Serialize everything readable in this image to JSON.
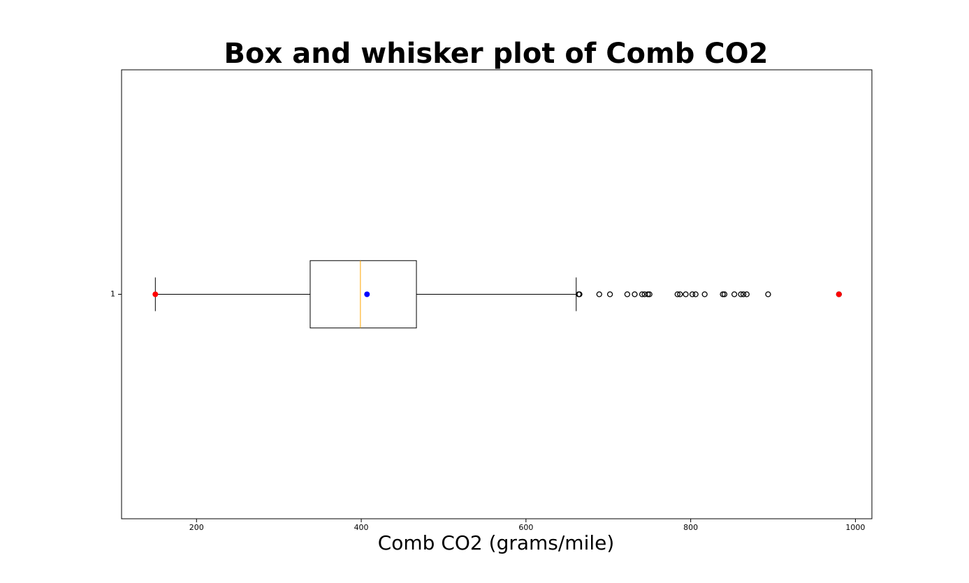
{
  "chart_data": {
    "type": "box",
    "title": "Box and whisker plot of Comb CO2",
    "xlabel": "Comb CO2 (grams/mile)",
    "xlim": [
      109,
      1020
    ],
    "xticks": [
      200,
      400,
      600,
      800,
      1000
    ],
    "ylim": [
      0.5,
      1.5
    ],
    "yticks": [
      1
    ],
    "box": {
      "whislo": 150,
      "q1": 338,
      "median": 399,
      "q3": 467,
      "whishi": 661,
      "mean": 407,
      "fliers": [
        664,
        665,
        689,
        702,
        723,
        732,
        741,
        744,
        748,
        750,
        784,
        787,
        794,
        802,
        806,
        817,
        839,
        841,
        853,
        861,
        864,
        868,
        894,
        980
      ],
      "min": 150,
      "max": 980
    },
    "box_color": "#000000",
    "median_color": "#ffa500",
    "mean_color": "#0000ff",
    "extreme_color": "#ff0000"
  }
}
